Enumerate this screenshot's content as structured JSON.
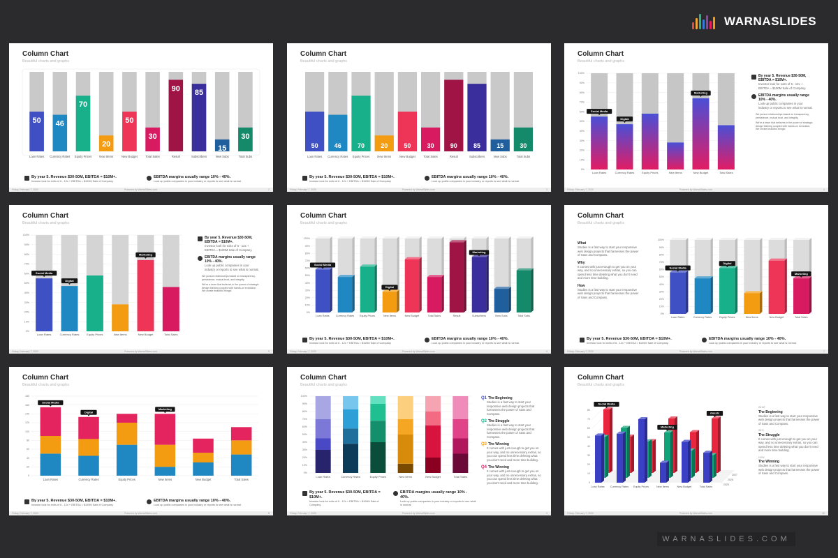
{
  "brand": {
    "name": "WARNASLIDES",
    "footer": "WARNASLIDES.COM",
    "logo_colors": [
      "#e94b3c",
      "#f2a93b",
      "#2fb380",
      "#3a7bd5",
      "#8e44ad",
      "#e91e63",
      "#f39c12"
    ]
  },
  "slide_title": "Column Chart",
  "slide_subtitle": "Beautiful charts and graphs",
  "footer": {
    "date": "Friday, February 7, 2020",
    "credit": "Powered by WarnaSlides.com"
  },
  "info": {
    "revenue_title": "By year 5. Revenue $30-50M, EBITDA = $10M+.",
    "revenue_text": "Investor look for exits of 6 - 12x + EBITDA = $100M Sale of Company.",
    "ebitda_title": "EBITDA margins usually range 10% - 40%.",
    "ebitda_text": "Look up public companies in your industry or reports to see what is normal."
  },
  "side_basic": {
    "revenue_title": "By year 5. Revenue $30-50M, EBITDA = $10M+.",
    "revenue_text": "Investor look for exits of 6 - 12x + EBITDA = $100M Sale of Company.",
    "ebitda_title": "EBITDA margins usually range 10% - 40%.",
    "ebitda_text": "Look up public companies in your industry or reports to see what is normal.",
    "bullet1": "We pursue relationships based on transparency, persistence, mutual trust, and integrity.",
    "bullet2": "We're a team that believes in the power of strategic design thinking coupled with hands-on execution. We create beautiful things!"
  },
  "side_wwh": {
    "what_title": "What",
    "what_text": "Studies is a fast way to start your responsive web design projects that harnesses the power of Sass and Compass.",
    "why_title": "Why",
    "why_text": "It comes with just enough to get you on your way, and no unnecessary extras, so you can spend less time deleting what you don't need and more time building.",
    "how_title": "How",
    "how_text": "Studies is a fast way to start your responsive web design projects that harnesses the power of Sass and Compass."
  },
  "side_q": {
    "q1_num": "Q1",
    "q1_title": "The Beginning",
    "q1_text": "Studies is a fast way to start your responsive web design projects that harnesses the power of Sass and Compass.",
    "q2_num": "Q2",
    "q2_title": "The Struggle",
    "q2_text": "Studies is a fast way to start your responsive web design projects that harnesses the power of Sass and Compass.",
    "q3_num": "Q3",
    "q3_title": "The Winning",
    "q3_text": "It comes with just enough to get you on your way, and no unnecessary extras, so you can spend less time deleting what you don't need and more time building.",
    "q4_num": "Q4",
    "q4_title": "The Winning",
    "q4_text": "It comes with just enough to get you on your way, and no unnecessary extras, so you can spend less time deleting what you don't need and more time building."
  },
  "side_story": {
    "k1": "WHAT",
    "t1": "The Beginning",
    "x1": "Studies is a fast way to start your responsive web design projects that harnesses the power of Sass and Compass.",
    "k2": "WHY",
    "t2": "The Struggle",
    "x2": "It comes with just enough to get you on your way, and no unnecessary extras, so you can spend less time deleting what you don't need and more time building.",
    "k3": "HOW",
    "t3": "The Winning",
    "x3": "Studies is a fast way to start your responsive web design projects that harnesses the power of Sass and Compass."
  },
  "chart_data": [
    {
      "type": "bar",
      "variant": "progress-columns-rounded",
      "categories": [
        "Loan Rates",
        "Currency Rates",
        "Equity Prices",
        "New Items",
        "New Budget",
        "Total Sales",
        "Result",
        "Subscribers",
        "New Subs",
        "Total Subs"
      ],
      "values": [
        50,
        46,
        70,
        20,
        50,
        30,
        90,
        85,
        15,
        30
      ],
      "ylim": [
        0,
        100
      ],
      "colors": [
        "#3f4fc4",
        "#1f87c2",
        "#17b08a",
        "#f39c12",
        "#ee3558",
        "#d81b60",
        "#a01345",
        "#3a2e9c",
        "#1f5f9e",
        "#148a6a"
      ]
    },
    {
      "type": "bar",
      "variant": "progress-columns",
      "categories": [
        "Loan Rates",
        "Currency Rates",
        "Equity Prices",
        "New Items",
        "New Budget",
        "Total Sales",
        "Result",
        "Subscribers",
        "New Subs",
        "Total Subs"
      ],
      "values": [
        50,
        46,
        70,
        20,
        50,
        30,
        90,
        85,
        15,
        30
      ],
      "ylim": [
        0,
        100
      ],
      "colors": [
        "#3f4fc4",
        "#1f87c2",
        "#17b08a",
        "#f39c12",
        "#ee3558",
        "#d81b60",
        "#a01345",
        "#3a2e9c",
        "#1f5f9e",
        "#148a6a"
      ]
    },
    {
      "type": "bar",
      "variant": "gradient-columns",
      "categories": [
        "Loan Rates",
        "Currency Rates",
        "Equity Prices",
        "New Items",
        "New Budget",
        "Total Sales"
      ],
      "values": [
        55,
        47,
        58,
        28,
        74,
        46
      ],
      "ylim": [
        0,
        100
      ],
      "yticks": [
        "0%",
        "10%",
        "20%",
        "30%",
        "40%",
        "50%",
        "60%",
        "70%",
        "80%",
        "90%",
        "100%"
      ],
      "callouts": [
        {
          "index": 0,
          "label": "Social Media"
        },
        {
          "index": 1,
          "label": "Digital"
        },
        {
          "index": 4,
          "label": "Marketing"
        }
      ]
    },
    {
      "type": "bar",
      "variant": "flat-columns",
      "categories": [
        "Loan Rates",
        "Currency Rates",
        "Equity Prices",
        "New Items",
        "New Budget",
        "Total Sales"
      ],
      "values": [
        55,
        47,
        58,
        28,
        74,
        46
      ],
      "ylim": [
        0,
        100
      ],
      "yticks": [
        "0%",
        "10%",
        "20%",
        "30%",
        "40%",
        "50%",
        "60%",
        "70%",
        "80%",
        "90%",
        "100%"
      ],
      "colors": [
        "#3f4fc4",
        "#1f87c2",
        "#17b08a",
        "#f39c12",
        "#ee3558",
        "#d81b60"
      ],
      "callouts": [
        {
          "index": 0,
          "label": "Social Media"
        },
        {
          "index": 1,
          "label": "Digital"
        },
        {
          "index": 4,
          "label": "Marketing"
        }
      ]
    },
    {
      "type": "bar",
      "variant": "3d-columns",
      "categories": [
        "Loan Rates",
        "Currency Rates",
        "Equity Prices",
        "New Items",
        "New Budget",
        "Total Sales",
        "Result",
        "Subscribers",
        "New Subs",
        "Total Subs"
      ],
      "values": [
        58,
        48,
        62,
        28,
        72,
        48,
        95,
        75,
        32,
        57
      ],
      "ylim": [
        0,
        100
      ],
      "yticks": [
        "0%",
        "10%",
        "20%",
        "30%",
        "40%",
        "50%",
        "60%",
        "70%",
        "80%",
        "90%",
        "100%"
      ],
      "colors": [
        "#3f4fc4",
        "#1f87c2",
        "#17b08a",
        "#f39c12",
        "#ee3558",
        "#d81b60",
        "#a01345",
        "#3a2e9c",
        "#1f5f9e",
        "#148a6a"
      ],
      "callouts": [
        {
          "index": 0,
          "label": "Social Media"
        },
        {
          "index": 3,
          "label": "Digital"
        },
        {
          "index": 7,
          "label": "Marketing"
        }
      ]
    },
    {
      "type": "bar",
      "variant": "3d-columns",
      "categories": [
        "Loan Rates",
        "Currency Rates",
        "Equity Prices",
        "New Items",
        "New Budget",
        "Total Sales"
      ],
      "values": [
        56,
        48,
        62,
        28,
        72,
        48
      ],
      "ylim": [
        0,
        100
      ],
      "yticks": [
        "0%",
        "10%",
        "20%",
        "30%",
        "40%",
        "50%",
        "60%",
        "70%",
        "80%",
        "90%",
        "100%"
      ],
      "colors": [
        "#3f4fc4",
        "#1f87c2",
        "#17b08a",
        "#f39c12",
        "#ee3558",
        "#d81b60"
      ],
      "callouts": [
        {
          "index": 0,
          "label": "Social Media"
        },
        {
          "index": 2,
          "label": "Digital"
        },
        {
          "index": 5,
          "label": "Marketing"
        }
      ]
    },
    {
      "type": "bar",
      "variant": "stacked",
      "categories": [
        "Loan Rates",
        "Currency Rates",
        "Equity Prices",
        "New Items",
        "New Budget",
        "Total Sales"
      ],
      "series": [
        {
          "values": [
            50,
            45,
            70,
            20,
            30,
            48
          ],
          "color": "#1f87c2"
        },
        {
          "values": [
            40,
            38,
            50,
            50,
            22,
            32
          ],
          "color": "#f39c12"
        },
        {
          "values": [
            65,
            50,
            20,
            70,
            32,
            30
          ],
          "color": "#e3245e"
        }
      ],
      "ylim": [
        0,
        180
      ],
      "yticks": [
        "0",
        "20",
        "40",
        "60",
        "80",
        "100",
        "120",
        "140",
        "160",
        "180"
      ],
      "callouts": [
        {
          "index": 0,
          "label": "Social Media"
        },
        {
          "index": 1,
          "label": "Digital"
        },
        {
          "index": 3,
          "label": "Marketing"
        }
      ]
    },
    {
      "type": "bar",
      "variant": "stacked-100",
      "categories": [
        "Loan Rates",
        "Currency Rates",
        "Equity Prices",
        "New Items",
        "New Budget",
        "Total Sales"
      ],
      "ylim": [
        0,
        100
      ],
      "yticks": [
        "0%",
        "10%",
        "20%",
        "30%",
        "40%",
        "50%",
        "60%",
        "70%",
        "80%",
        "90%",
        "100%"
      ],
      "segments": [
        [
          30,
          15,
          25,
          30
        ],
        [
          38,
          20,
          25,
          17
        ],
        [
          40,
          28,
          22,
          10
        ],
        [
          12,
          38,
          20,
          30
        ],
        [
          20,
          42,
          18,
          20
        ],
        [
          25,
          20,
          25,
          30
        ]
      ],
      "palettes": [
        [
          "#27246b",
          "#4a49c5",
          "#7b78d8",
          "#a9a6e4"
        ],
        [
          "#0c3b5a",
          "#1e6f9b",
          "#2e9fd7",
          "#76c6ee"
        ],
        [
          "#0a4d3b",
          "#148f6c",
          "#1fbf92",
          "#62e0bf"
        ],
        [
          "#7a4a00",
          "#d88a0b",
          "#f5a623",
          "#fbcf7d"
        ],
        [
          "#8b0021",
          "#d8143e",
          "#f36b82",
          "#f7a4b2"
        ],
        [
          "#6b0a39",
          "#b1175d",
          "#e14389",
          "#f08cba"
        ]
      ]
    },
    {
      "type": "bar",
      "variant": "3d-grouped",
      "categories": [
        "Loan Rates",
        "Currency Rates",
        "Equity Prices",
        "New Items",
        "New Budget",
        "Total Sales"
      ],
      "series": [
        {
          "name": "2025",
          "values": [
            52,
            54,
            70,
            22,
            45,
            33
          ],
          "color": "#3a3fc4"
        },
        {
          "name": "2026",
          "values": [
            45,
            55,
            40,
            50,
            30,
            25
          ],
          "color": "#11a37a"
        },
        {
          "name": "2027",
          "values": [
            70,
            40,
            35,
            60,
            45,
            60
          ],
          "color": "#e8273f"
        }
      ],
      "ylim": [
        0,
        80
      ],
      "yticks": [
        "0",
        "10",
        "20",
        "30",
        "40",
        "50",
        "60",
        "70",
        "80"
      ],
      "callouts": [
        {
          "label": "Social Media"
        },
        {
          "label": "Marketing"
        },
        {
          "label": "classic"
        }
      ]
    }
  ]
}
